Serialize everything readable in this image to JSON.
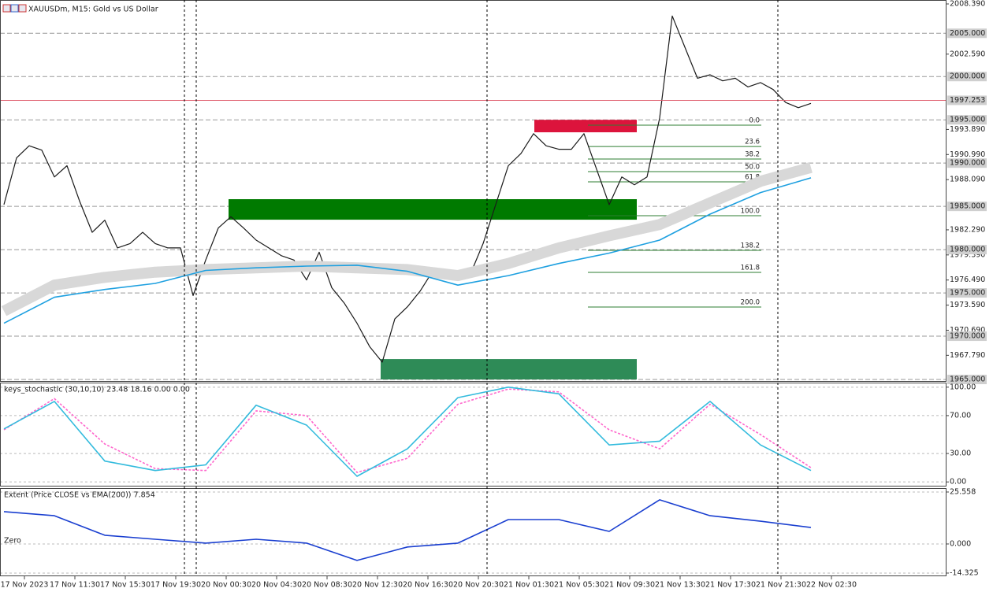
{
  "chart_data": [
    {
      "type": "line",
      "title": "XAUUSDm, M15: Gold vs US Dollar",
      "ylim": [
        1964.82,
        2008.845
      ],
      "yticks": [
        {
          "value": 2008.39,
          "label": "2008.390"
        },
        {
          "value": 2002.59,
          "label": "2002.590"
        },
        {
          "value": 1993.89,
          "label": "1993.890"
        },
        {
          "value": 1990.99,
          "label": "1990.990"
        },
        {
          "value": 1988.09,
          "label": "1988.090"
        },
        {
          "value": 1982.29,
          "label": "1982.290"
        },
        {
          "value": 1979.39,
          "label": "1979.390"
        },
        {
          "value": 1976.49,
          "label": "1976.490"
        },
        {
          "value": 1973.59,
          "label": "1973.590"
        },
        {
          "value": 1970.69,
          "label": "1970.690"
        },
        {
          "value": 1967.79,
          "label": "1967.790"
        }
      ],
      "levels": [
        {
          "value": 2005,
          "label": "2005.000"
        },
        {
          "value": 2000,
          "label": "2000.000"
        },
        {
          "value": 1995,
          "label": "1995.000"
        },
        {
          "value": 1990,
          "label": "1990.000"
        },
        {
          "value": 1985,
          "label": "1985.000"
        },
        {
          "value": 1980,
          "label": "1980.000"
        },
        {
          "value": 1975,
          "label": "1975.000"
        },
        {
          "value": 1970,
          "label": "1970.000"
        },
        {
          "value": 1965,
          "label": "1965.000"
        }
      ],
      "current_price": {
        "value": 1997.253,
        "label": "1997.253",
        "color": "#e06070"
      },
      "series": [
        {
          "color": "#1a1a1a",
          "values": [
            1985.2,
            1990.6,
            1992.0,
            1991.5,
            1988.4,
            1989.7,
            1985.6,
            1982.0,
            1983.4,
            1980.2,
            1980.7,
            1982.0,
            1980.7,
            1980.2,
            1980.2,
            1974.7,
            1978.8,
            1982.5,
            1983.8,
            1982.5,
            1981.1,
            1980.2,
            1979.3,
            1978.8,
            1976.5,
            1979.7,
            1975.6,
            1973.8,
            1971.5,
            1968.8,
            1967.0,
            1972.0,
            1973.4,
            1975.2,
            1977.5,
            1977.2,
            1977.5,
            1977.2,
            1980.7,
            1985.2,
            1989.7,
            1991.1,
            1993.4,
            1992.0,
            1991.6,
            1991.6,
            1993.4,
            1989.3,
            1985.2,
            1988.4,
            1987.5,
            1988.4,
            1995.2,
            2007.0,
            2003.4,
            1999.8,
            2000.2,
            1999.5,
            1999.8,
            1998.8,
            1999.3,
            1998.5,
            1997.0,
            1996.4,
            1996.9
          ]
        },
        {
          "color": "#d8d8d8",
          "values": [
            1972.9,
            1975.9,
            1976.8,
            1977.4,
            1977.7,
            1977.9,
            1978.1,
            1977.9,
            1977.7,
            1977.0,
            1978.4,
            1980.2,
            1981.6,
            1982.9,
            1985.4,
            1987.9,
            1989.5
          ]
        },
        {
          "color": "#1ea0e0",
          "values": [
            1971.5,
            1974.5,
            1975.4,
            1976.1,
            1977.6,
            1977.9,
            1978.1,
            1978.2,
            1977.5,
            1975.9,
            1977.0,
            1978.4,
            1979.6,
            1981.1,
            1984.1,
            1986.6,
            1988.3
          ]
        }
      ],
      "zones": [
        {
          "top": 1995.0,
          "bottom": 1993.56,
          "color": "#dc143c"
        },
        {
          "top": 1985.83,
          "bottom": 1983.46,
          "color": "#007a00"
        },
        {
          "top": 1967.36,
          "bottom": 1965.0,
          "color": "#2e8b57"
        }
      ],
      "fib": {
        "color": "#2e7d32",
        "levels": [
          {
            "value": 1994.38,
            "label": "0.0"
          },
          {
            "value": 1991.92,
            "label": "23.6"
          },
          {
            "value": 1990.47,
            "label": "38.2"
          },
          {
            "value": 1989.02,
            "label": "50.0"
          },
          {
            "value": 1987.83,
            "label": "61.8"
          },
          {
            "value": 1983.92,
            "label": "100.0"
          },
          {
            "value": 1979.92,
            "label": "138.2"
          },
          {
            "value": 1977.37,
            "label": "161.8"
          },
          {
            "value": 1973.37,
            "label": "200.0"
          }
        ]
      },
      "x_labels": [
        "17 Nov 2023",
        "17 Nov 11:30",
        "17 Nov 15:30",
        "17 Nov 19:30",
        "20 Nov 00:30",
        "20 Nov 04:30",
        "20 Nov 08:30",
        "20 Nov 12:30",
        "20 Nov 16:30",
        "20 Nov 20:30",
        "21 Nov 01:30",
        "21 Nov 05:30",
        "21 Nov 09:30",
        "21 Nov 13:30",
        "21 Nov 17:30",
        "21 Nov 21:30",
        "22 Nov 02:30"
      ]
    },
    {
      "type": "line",
      "title": "keys_stochastic (30,10,10) 23.48 18.16 0.00 0.00",
      "ylim": [
        -4,
        104
      ],
      "yticks": [
        {
          "value": 100,
          "label": "100.00"
        },
        {
          "value": 70,
          "label": "70.00"
        },
        {
          "value": 30,
          "label": "30.00"
        },
        {
          "value": 0,
          "label": "0.00"
        }
      ],
      "series": [
        {
          "color": "#ff66cc",
          "dashed": true,
          "values": [
            55,
            88,
            40,
            14,
            12,
            75,
            70,
            10,
            25,
            82,
            98,
            95,
            55,
            35,
            82,
            50,
            15
          ]
        },
        {
          "color": "#33bbdd",
          "values": [
            56,
            85,
            22,
            12,
            18,
            81,
            60,
            6,
            35,
            89,
            100,
            93,
            39,
            43,
            85,
            39,
            12
          ]
        }
      ]
    },
    {
      "type": "line",
      "title": "Extent (Price CLOSE vs EMA(200)) 7.854",
      "ylim": [
        -15.5,
        27.1
      ],
      "yticks": [
        25.558,
        {
          "value": 0,
          "label": "0.000"
        },
        -14.325
      ],
      "zero_label": "Zero",
      "series": [
        {
          "color": "#1a3fd0",
          "values": [
            15.9,
            13.9,
            4.3,
            2.3,
            0.4,
            2.3,
            0.4,
            -8.1,
            -1.5,
            0.4,
            12.0,
            12.0,
            6.2,
            21.7,
            13.9,
            11.2,
            8.1
          ]
        }
      ]
    }
  ]
}
